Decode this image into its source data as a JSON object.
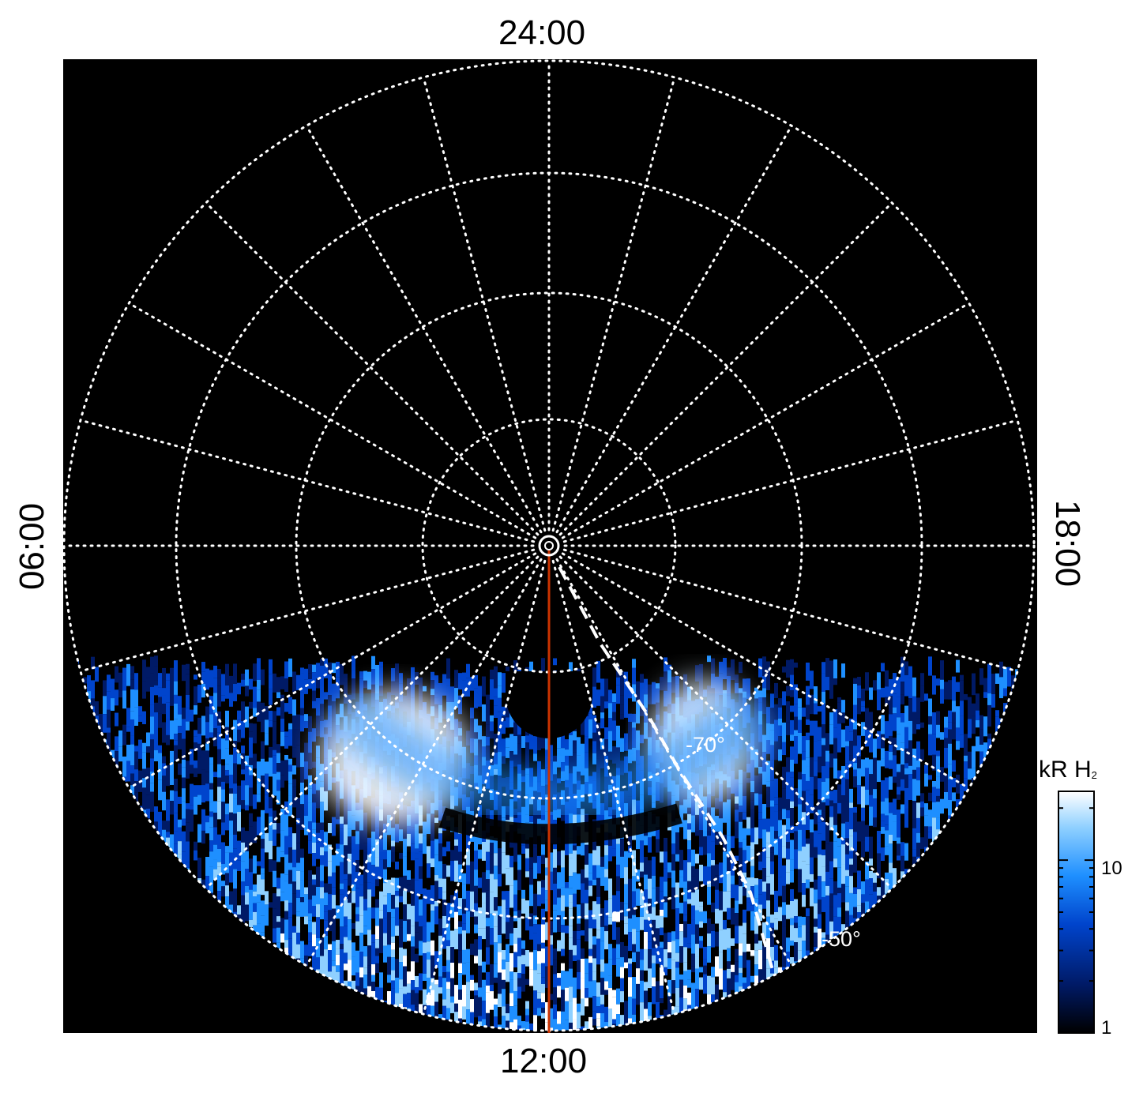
{
  "chart_data": {
    "type": "heatmap",
    "projection": "polar",
    "title": "",
    "local_time_labels": {
      "top": "24:00",
      "bottom": "12:00",
      "left": "06:00",
      "right": "18:00"
    },
    "latitude_labels": [
      "-70°",
      "-50°"
    ],
    "colorbar": {
      "title": "kR H",
      "title_subscript": "2",
      "scale": "log",
      "range": [
        1,
        25
      ],
      "tick_labels": [
        "1",
        "10"
      ],
      "colormap": [
        "#000000",
        "#001a66",
        "#0044cc",
        "#1e8fff",
        "#8fd0ff",
        "#ffffff"
      ]
    },
    "grid": {
      "on": true,
      "style": "dotted",
      "color": "#ffffff",
      "meridian_step_hours": 1
    },
    "background": "#000000",
    "overlays": [
      {
        "name": "noon meridian",
        "color": "#cc3300"
      }
    ],
    "features": [
      {
        "name": "dawn-side auroral patch",
        "local_time_center": 9.8,
        "intensity_kR": 25
      },
      {
        "name": "dusk-side auroral patch",
        "local_time_center": 14.2,
        "intensity_kR": 20
      },
      {
        "name": "main oval arc (noon sector)",
        "local_time_range": [
          8.5,
          15.5
        ],
        "intensity_kR": 10
      }
    ]
  }
}
